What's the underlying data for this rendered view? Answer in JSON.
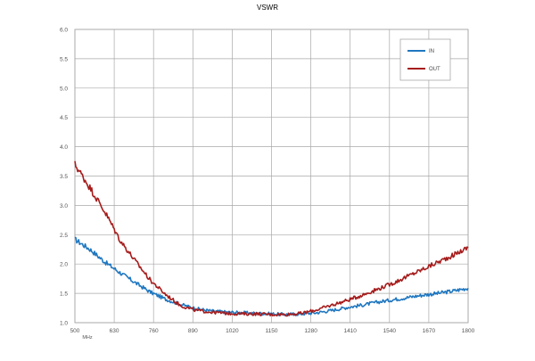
{
  "chart_data": {
    "type": "line",
    "title": "VSWR",
    "xlabel": "",
    "ylabel": "",
    "unit_label": "MHz",
    "x_ticks": [
      "500",
      "630",
      "760",
      "890",
      "1020",
      "1150",
      "1280",
      "1410",
      "1540",
      "1670",
      "1800"
    ],
    "y_ticks": [
      "1.0",
      "1.5",
      "2.0",
      "2.5",
      "3.0",
      "3.5",
      "4.0",
      "4.5",
      "5.0",
      "5.5",
      "6.0"
    ],
    "xlim": [
      500,
      1800
    ],
    "ylim": [
      1.0,
      6.0
    ],
    "grid": true,
    "legend_position": "top-right",
    "x": [
      500,
      550,
      600,
      650,
      700,
      750,
      800,
      850,
      900,
      950,
      1000,
      1050,
      1100,
      1150,
      1200,
      1250,
      1300,
      1350,
      1400,
      1450,
      1500,
      1550,
      1600,
      1650,
      1700,
      1750,
      1800
    ],
    "series": [
      {
        "name": "IN",
        "color": "#1f77c0",
        "values": [
          2.42,
          2.25,
          2.03,
          1.85,
          1.68,
          1.52,
          1.4,
          1.31,
          1.24,
          1.2,
          1.18,
          1.17,
          1.16,
          1.15,
          1.14,
          1.15,
          1.17,
          1.21,
          1.26,
          1.3,
          1.35,
          1.39,
          1.43,
          1.47,
          1.5,
          1.54,
          1.59
        ]
      },
      {
        "name": "OUT",
        "color": "#a61c1c",
        "values": [
          3.7,
          3.3,
          2.88,
          2.4,
          2.05,
          1.72,
          1.48,
          1.29,
          1.21,
          1.18,
          1.16,
          1.15,
          1.15,
          1.14,
          1.14,
          1.16,
          1.22,
          1.3,
          1.38,
          1.47,
          1.57,
          1.67,
          1.79,
          1.91,
          2.03,
          2.15,
          2.28
        ]
      }
    ]
  }
}
